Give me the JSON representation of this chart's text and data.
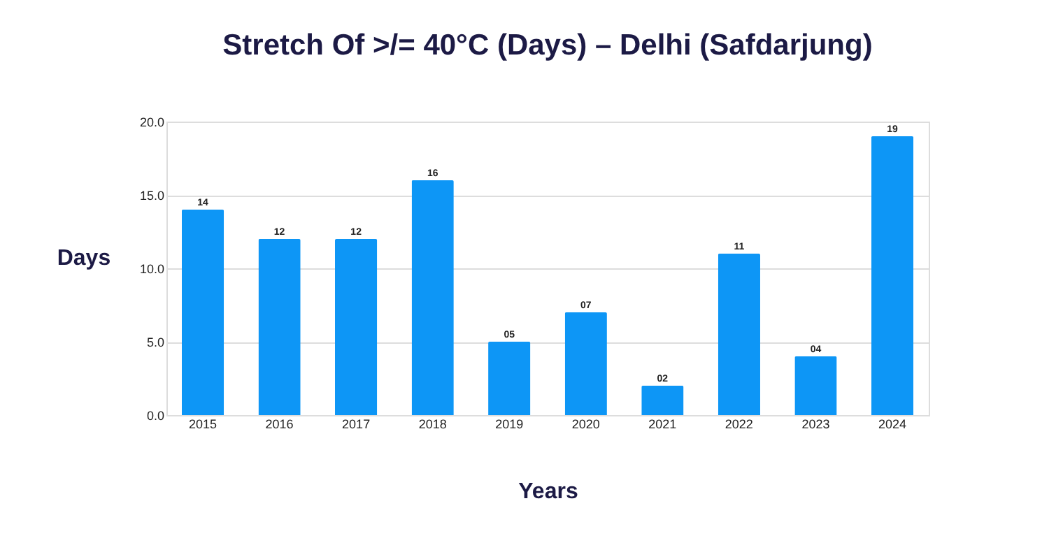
{
  "chart_data": {
    "type": "bar",
    "title": "Stretch Of >/= 40°C (Days) – Delhi (Safdarjung)",
    "xlabel": "Years",
    "ylabel": "Days",
    "categories": [
      "2015",
      "2016",
      "2017",
      "2018",
      "2019",
      "2020",
      "2021",
      "2022",
      "2023",
      "2024"
    ],
    "values": [
      14,
      12,
      12,
      16,
      5,
      7,
      2,
      11,
      4,
      19
    ],
    "value_labels": [
      "14",
      "12",
      "12",
      "16",
      "05",
      "07",
      "02",
      "11",
      "04",
      "19"
    ],
    "color": "#0d96f6",
    "ylim": [
      0,
      20
    ],
    "yticks": [
      {
        "value": 0,
        "label": "0.0"
      },
      {
        "value": 5,
        "label": "5.0"
      },
      {
        "value": 10,
        "label": "10.0"
      },
      {
        "value": 15,
        "label": "15.0"
      },
      {
        "value": 20,
        "label": "20.0"
      }
    ],
    "grid": "y"
  }
}
